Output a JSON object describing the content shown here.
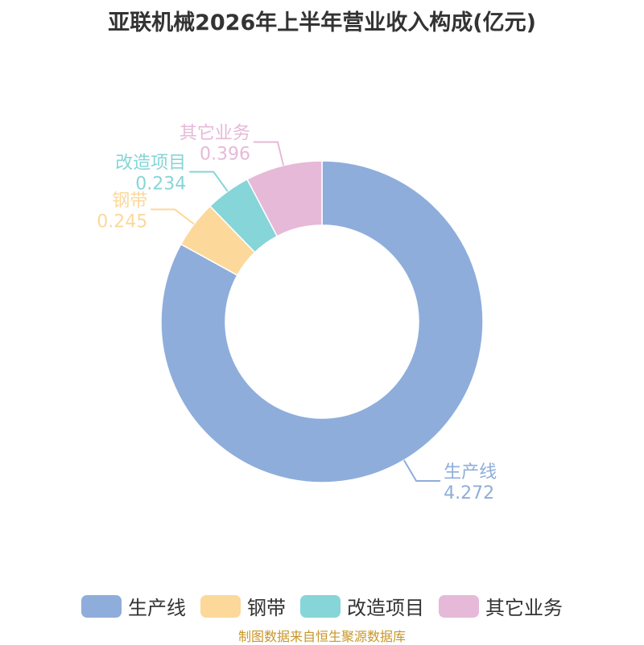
{
  "chart_data": {
    "type": "pie",
    "donut": true,
    "title": "亚联机械2026年上半年营业收入构成(亿元)",
    "source": "制图数据来自恒生聚源数据库",
    "legend_position": "bottom",
    "slices": [
      {
        "label": "生产线",
        "value": 4.272,
        "value_text": "4.272",
        "color": "#8eaddb"
      },
      {
        "label": "钢带",
        "value": 0.245,
        "value_text": "0.245",
        "color": "#fcd89a"
      },
      {
        "label": "改造项目",
        "value": 0.234,
        "value_text": "0.234",
        "color": "#86d5d8"
      },
      {
        "label": "其它业务",
        "value": 0.396,
        "value_text": "0.396",
        "color": "#e6b9d8"
      }
    ]
  }
}
